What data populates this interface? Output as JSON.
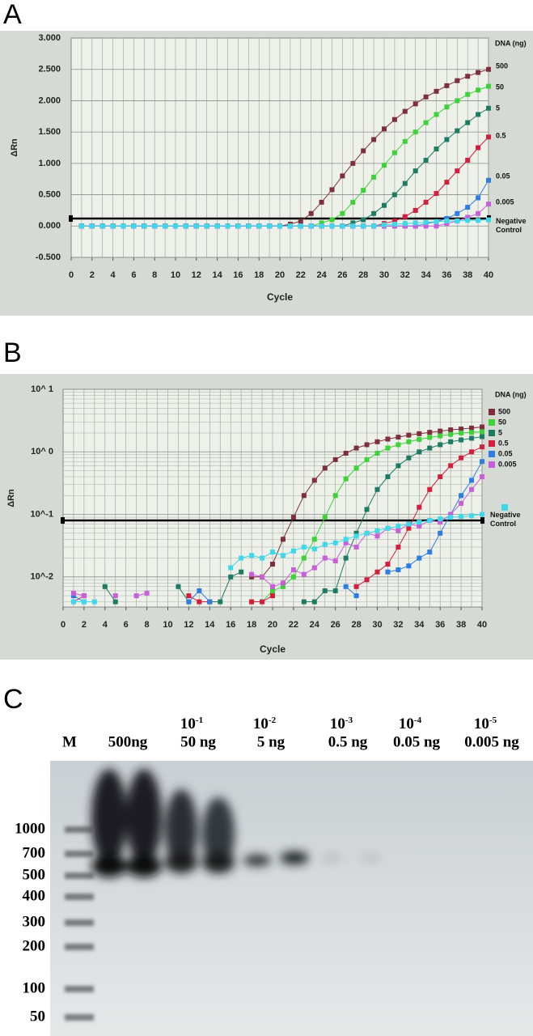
{
  "panels": {
    "a": "A",
    "b": "B",
    "c": "C"
  },
  "chart_data": [
    {
      "type": "line",
      "xlabel": "Cycle",
      "ylabel": "ΔRn",
      "legend_title": "DNA (ng)",
      "legend": "end",
      "grid": true,
      "threshold": 0.12,
      "x": [
        1,
        2,
        3,
        4,
        5,
        6,
        7,
        8,
        9,
        10,
        11,
        12,
        13,
        14,
        15,
        16,
        17,
        18,
        19,
        20,
        21,
        22,
        23,
        24,
        25,
        26,
        27,
        28,
        29,
        30,
        31,
        32,
        33,
        34,
        35,
        36,
        37,
        38,
        39,
        40
      ],
      "xlim": [
        0,
        40
      ],
      "xticks": [
        0,
        2,
        4,
        6,
        8,
        10,
        12,
        14,
        16,
        18,
        20,
        22,
        24,
        26,
        28,
        30,
        32,
        34,
        36,
        38,
        40
      ],
      "ylim": [
        -0.5,
        3
      ],
      "yticks": [
        {
          "value": -0.5,
          "label": "-0.500"
        },
        {
          "value": 0,
          "label": "0.000"
        },
        {
          "value": 0.5,
          "label": "0.500"
        },
        {
          "value": 1,
          "label": "1.000"
        },
        {
          "value": 1.5,
          "label": "1.500"
        },
        {
          "value": 2,
          "label": "2.000"
        },
        {
          "value": 2.5,
          "label": "2.500"
        },
        {
          "value": 3,
          "label": "3.000"
        }
      ],
      "series": [
        {
          "name": "500",
          "color": "#7d2f3d",
          "values": [
            0,
            0,
            0,
            0,
            0,
            0,
            0,
            0,
            0,
            0,
            0,
            0,
            0,
            0,
            0,
            0,
            0,
            0,
            0,
            0,
            0.03,
            0.08,
            0.2,
            0.38,
            0.58,
            0.8,
            1.0,
            1.2,
            1.38,
            1.55,
            1.7,
            1.83,
            1.95,
            2.06,
            2.15,
            2.24,
            2.32,
            2.39,
            2.45,
            2.5
          ]
        },
        {
          "name": "50",
          "color": "#3fd13a",
          "values": [
            0,
            0,
            0,
            0,
            0,
            0,
            0,
            0,
            0,
            0,
            0,
            0,
            0,
            0,
            0,
            0,
            0,
            0,
            0,
            0,
            0,
            0,
            0,
            0.05,
            0.1,
            0.2,
            0.38,
            0.57,
            0.78,
            0.97,
            1.17,
            1.35,
            1.5,
            1.65,
            1.78,
            1.9,
            2.0,
            2.1,
            2.17,
            2.23
          ]
        },
        {
          "name": "5",
          "color": "#1d7a63",
          "values": [
            0,
            0,
            0,
            0,
            0,
            0,
            0,
            0,
            0,
            0,
            0,
            0,
            0,
            0,
            0,
            0,
            0,
            0,
            0,
            0,
            0,
            0,
            0,
            0,
            0,
            0,
            0.05,
            0.1,
            0.2,
            0.33,
            0.5,
            0.68,
            0.88,
            1.05,
            1.23,
            1.38,
            1.52,
            1.65,
            1.78,
            1.88
          ]
        },
        {
          "name": "0.5",
          "color": "#d11f3d",
          "values": [
            0,
            0,
            0,
            0,
            0,
            0,
            0,
            0,
            0,
            0,
            0,
            0,
            0,
            0,
            0,
            0,
            0,
            0,
            0,
            0,
            0,
            0,
            0,
            0,
            0,
            0,
            0,
            0,
            0,
            0.04,
            0.08,
            0.15,
            0.25,
            0.38,
            0.52,
            0.7,
            0.88,
            1.05,
            1.25,
            1.42
          ]
        },
        {
          "name": "0.05",
          "color": "#2f7de0",
          "values": [
            0,
            0,
            0,
            0,
            0,
            0,
            0,
            0,
            0,
            0,
            0,
            0,
            0,
            0,
            0,
            0,
            0,
            0,
            0,
            0,
            0,
            0,
            0,
            0,
            0,
            0,
            0,
            0,
            0,
            0,
            0,
            0,
            0,
            0.04,
            0.07,
            0.12,
            0.2,
            0.3,
            0.45,
            0.73
          ]
        },
        {
          "name": "0.005",
          "color": "#c65fd8",
          "values": [
            0,
            0,
            0,
            0,
            0,
            0,
            0,
            0,
            0,
            0,
            0,
            0,
            0,
            0,
            0,
            0,
            0,
            0,
            0,
            0,
            0,
            0,
            0,
            0,
            0,
            0,
            0,
            0,
            0,
            0,
            0,
            0,
            0,
            0,
            0,
            0.04,
            0.08,
            0.14,
            0.2,
            0.35
          ]
        },
        {
          "name": "Negative Control",
          "color": "#3fd8e8",
          "values": [
            0,
            0,
            0,
            0,
            0,
            0,
            0,
            0,
            0,
            0,
            0,
            0,
            0,
            0,
            0,
            0,
            0,
            0,
            0,
            0,
            0,
            0,
            0,
            0,
            0,
            0,
            0,
            0,
            0,
            0.02,
            0.03,
            0.04,
            0.05,
            0.06,
            0.07,
            0.08,
            0.08,
            0.09,
            0.09,
            0.1
          ]
        }
      ]
    },
    {
      "type": "line",
      "xlabel": "Cycle",
      "ylabel": "ΔRn",
      "legend_title": "DNA (ng)",
      "legend": "right",
      "grid": true,
      "log_scale": true,
      "threshold": 0.08,
      "x": [
        1,
        2,
        3,
        4,
        5,
        6,
        7,
        8,
        9,
        10,
        11,
        12,
        13,
        14,
        15,
        16,
        17,
        18,
        19,
        20,
        21,
        22,
        23,
        24,
        25,
        26,
        27,
        28,
        29,
        30,
        31,
        32,
        33,
        34,
        35,
        36,
        37,
        38,
        39,
        40
      ],
      "xlim": [
        0,
        40
      ],
      "xticks": [
        0,
        2,
        4,
        6,
        8,
        10,
        12,
        14,
        16,
        18,
        20,
        22,
        24,
        26,
        28,
        30,
        32,
        34,
        36,
        38,
        40
      ],
      "ylim": [
        0.0033,
        10
      ],
      "yticks": [
        {
          "value": 0.01,
          "label": "10^-2"
        },
        {
          "value": 0.1,
          "label": "10^-1"
        },
        {
          "value": 1,
          "label": "10^ 0"
        },
        {
          "value": 10,
          "label": "10^ 1"
        }
      ],
      "series": [
        {
          "name": "500",
          "color": "#7d2f3d",
          "values": [
            null,
            null,
            null,
            null,
            null,
            null,
            null,
            null,
            null,
            null,
            null,
            null,
            null,
            null,
            null,
            null,
            null,
            0.01,
            0.01,
            0.016,
            0.04,
            0.09,
            0.2,
            0.35,
            0.55,
            0.75,
            0.95,
            1.15,
            1.3,
            1.45,
            1.6,
            1.72,
            1.85,
            1.95,
            2.05,
            2.15,
            2.25,
            2.32,
            2.4,
            2.5
          ]
        },
        {
          "name": "50",
          "color": "#3fd13a",
          "values": [
            null,
            null,
            null,
            null,
            null,
            null,
            null,
            null,
            null,
            null,
            null,
            null,
            null,
            null,
            null,
            null,
            null,
            0.004,
            0.004,
            0.006,
            0.007,
            0.01,
            0.02,
            0.04,
            0.09,
            0.2,
            0.37,
            0.55,
            0.75,
            0.95,
            1.15,
            1.3,
            1.45,
            1.58,
            1.7,
            1.8,
            1.9,
            2.0,
            2.05,
            2.1
          ]
        },
        {
          "name": "5",
          "color": "#1d7a63",
          "values": [
            null,
            null,
            null,
            0.007,
            0.004,
            null,
            null,
            null,
            null,
            null,
            0.007,
            0.004,
            null,
            0.004,
            0.004,
            0.01,
            0.012,
            null,
            null,
            null,
            null,
            null,
            0.004,
            0.004,
            0.006,
            0.006,
            0.02,
            0.05,
            0.12,
            0.25,
            0.4,
            0.6,
            0.8,
            1.0,
            1.15,
            1.3,
            1.45,
            1.55,
            1.65,
            1.75
          ]
        },
        {
          "name": "0.5",
          "color": "#d11f3d",
          "values": [
            0.004,
            0.005,
            null,
            null,
            null,
            null,
            null,
            null,
            null,
            null,
            null,
            0.005,
            0.004,
            0.004,
            null,
            null,
            null,
            0.004,
            0.004,
            0.005,
            null,
            null,
            null,
            null,
            null,
            null,
            null,
            0.007,
            0.009,
            0.012,
            0.016,
            0.03,
            0.06,
            0.13,
            0.25,
            0.4,
            0.6,
            0.8,
            1.0,
            1.2
          ]
        },
        {
          "name": "0.05",
          "color": "#2f7de0",
          "values": [
            0.005,
            0.004,
            null,
            null,
            null,
            null,
            null,
            null,
            null,
            null,
            null,
            0.004,
            0.006,
            0.004,
            null,
            null,
            null,
            null,
            null,
            null,
            null,
            null,
            null,
            null,
            null,
            null,
            0.007,
            0.005,
            null,
            null,
            0.012,
            0.013,
            0.015,
            0.02,
            0.025,
            0.05,
            0.1,
            0.2,
            0.35,
            0.7
          ]
        },
        {
          "name": "0.005",
          "color": "#c65fd8",
          "values": [
            0.0055,
            0.005,
            null,
            null,
            0.005,
            null,
            0.005,
            0.0055,
            null,
            null,
            null,
            null,
            null,
            null,
            null,
            null,
            null,
            0.011,
            0.01,
            0.007,
            0.008,
            0.013,
            0.011,
            0.014,
            0.02,
            0.018,
            0.035,
            0.03,
            0.05,
            0.045,
            0.06,
            0.055,
            0.07,
            0.065,
            0.08,
            0.075,
            0.1,
            0.15,
            0.25,
            0.4
          ]
        },
        {
          "name": "Negative Control",
          "color": "#3fd8e8",
          "values": [
            0.004,
            0.004,
            0.004,
            null,
            null,
            null,
            null,
            null,
            null,
            null,
            null,
            null,
            null,
            null,
            null,
            0.014,
            0.02,
            0.022,
            0.02,
            0.025,
            0.022,
            0.026,
            0.03,
            0.028,
            0.033,
            0.035,
            0.04,
            0.045,
            0.05,
            0.055,
            0.06,
            0.065,
            0.07,
            0.075,
            0.08,
            0.085,
            0.09,
            0.093,
            0.095,
            0.1
          ]
        }
      ]
    }
  ],
  "gel": {
    "marker_lane": "M",
    "lanes": [
      {
        "amount": "500ng"
      },
      {
        "base": "10",
        "exp": "-1",
        "amount": "50 ng"
      },
      {
        "base": "10",
        "exp": "-2",
        "amount": "5 ng"
      },
      {
        "base": "10",
        "exp": "-3",
        "amount": "0.5 ng"
      },
      {
        "base": "10",
        "exp": "-4",
        "amount": "0.05 ng"
      },
      {
        "base": "10",
        "exp": "-5",
        "amount": "0.005 ng"
      }
    ],
    "marker_sizes": [
      "1000",
      "700",
      "500",
      "400",
      "300",
      "200",
      "100",
      "50"
    ]
  }
}
